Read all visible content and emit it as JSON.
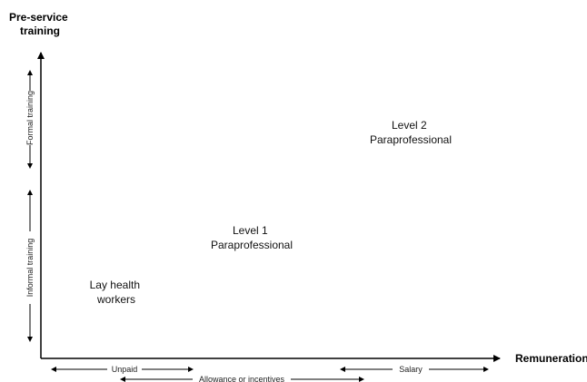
{
  "axes": {
    "y_label_lines": [
      "Pre-service",
      "training"
    ],
    "x_label": "Remuneration"
  },
  "y_ranges": [
    {
      "label": "Formal training"
    },
    {
      "label": "Informal training"
    }
  ],
  "x_ranges": [
    {
      "label": "Unpaid"
    },
    {
      "label": "Allowance or incentives"
    },
    {
      "label": "Salary"
    }
  ],
  "nodes": [
    {
      "lines": [
        "Lay health",
        "workers"
      ]
    },
    {
      "lines": [
        "Level 1",
        "Paraprofessional"
      ]
    },
    {
      "lines": [
        "Level 2",
        "Paraprofessional"
      ]
    }
  ]
}
